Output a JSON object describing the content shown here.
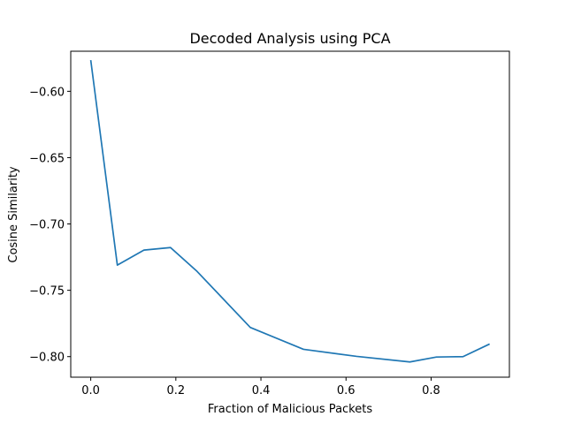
{
  "chart_data": {
    "type": "line",
    "title": "Decoded Analysis using PCA",
    "xlabel": "Fraction of Malicious Packets",
    "ylabel": "Cosine Similarity",
    "xlim": [
      -0.047,
      0.984
    ],
    "ylim": [
      -0.8155,
      -0.5698
    ],
    "x_ticks": [
      0.0,
      0.2,
      0.4,
      0.6,
      0.8
    ],
    "x_tick_labels": [
      "0.0",
      "0.2",
      "0.4",
      "0.6",
      "0.8"
    ],
    "y_ticks": [
      -0.6,
      -0.65,
      -0.7,
      -0.75,
      -0.8
    ],
    "y_tick_labels": [
      "−0.60",
      "−0.65",
      "−0.70",
      "−0.75",
      "−0.80"
    ],
    "grid": false,
    "line_color": "#1f77b4",
    "series": [
      {
        "x": [
          0.0,
          0.0625,
          0.125,
          0.1875,
          0.25,
          0.375,
          0.5,
          0.625,
          0.75,
          0.8125,
          0.875,
          0.9375
        ],
        "values": [
          -0.5765,
          -0.731,
          -0.7197,
          -0.7178,
          -0.7358,
          -0.778,
          -0.7945,
          -0.7998,
          -0.804,
          -0.8003,
          -0.8,
          -0.7905
        ]
      }
    ]
  }
}
